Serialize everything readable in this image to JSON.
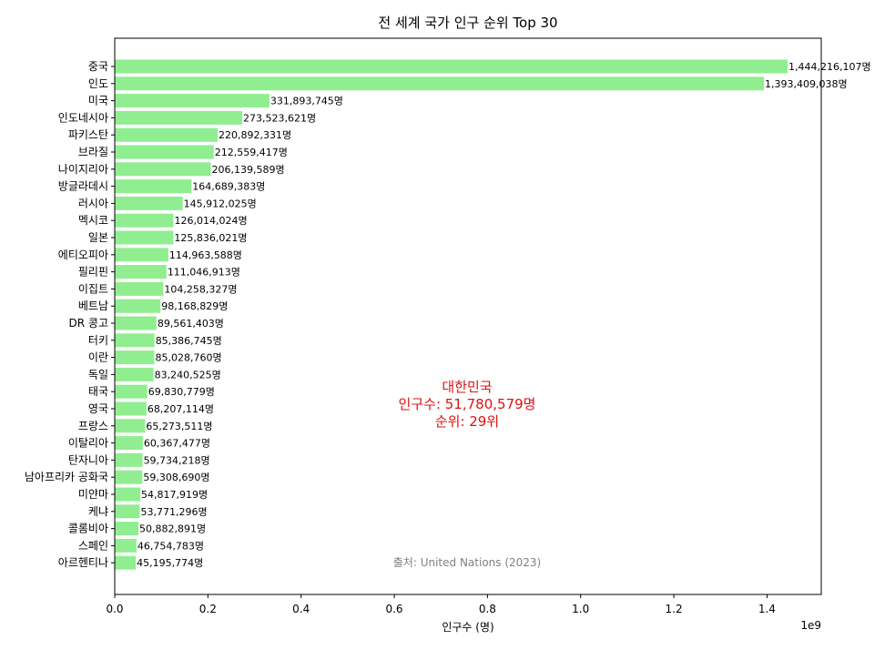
{
  "chart_data": {
    "type": "bar",
    "orientation": "horizontal",
    "title": "전 세계 국가 인구 순위 Top 30",
    "xlabel": "인구수 (명)",
    "ylabel": "",
    "xlim": [
      0,
      1516426912
    ],
    "x_ticks": [
      0,
      200000000,
      400000000,
      600000000,
      800000000,
      1000000000,
      1200000000,
      1400000000
    ],
    "x_tick_labels": [
      "0.0",
      "0.2",
      "0.4",
      "0.6",
      "0.8",
      "1.0",
      "1.2",
      "1.4"
    ],
    "x_scale_text": "1e9",
    "grid": false,
    "bar_color": "#90ee90",
    "value_suffix": "명",
    "categories": [
      "중국",
      "인도",
      "미국",
      "인도네시아",
      "파키스탄",
      "브라질",
      "나이지리아",
      "방글라데시",
      "러시아",
      "멕시코",
      "일본",
      "에티오피아",
      "필리핀",
      "이집트",
      "베트남",
      "DR 콩고",
      "터키",
      "이란",
      "독일",
      "태국",
      "영국",
      "프랑스",
      "이탈리아",
      "탄자니아",
      "남아프리카 공화국",
      "미얀마",
      "케냐",
      "콜롬비아",
      "스페인",
      "아르헨티나"
    ],
    "values": [
      1444216107,
      1393409038,
      331893745,
      273523621,
      220892331,
      212559417,
      206139589,
      164689383,
      145912025,
      126014024,
      125836021,
      114963588,
      111046913,
      104258327,
      98168829,
      89561403,
      85386745,
      85028760,
      83240525,
      69830779,
      68207114,
      65273511,
      60367477,
      59734218,
      59308690,
      54817919,
      53771296,
      50882891,
      46754783,
      45195774
    ],
    "value_labels": [
      "1,444,216,107명",
      "1,393,409,038명",
      "331,893,745명",
      "273,523,621명",
      "220,892,331명",
      "212,559,417명",
      "206,139,589명",
      "164,689,383명",
      "145,912,025명",
      "126,014,024명",
      "125,836,021명",
      "114,963,588명",
      "111,046,913명",
      "104,258,327명",
      "98,168,829명",
      "89,561,403명",
      "85,386,745명",
      "85,028,760명",
      "83,240,525명",
      "69,830,779명",
      "68,207,114명",
      "65,273,511명",
      "60,367,477명",
      "59,734,218명",
      "59,308,690명",
      "54,817,919명",
      "53,771,296명",
      "50,882,891명",
      "46,754,783명",
      "45,195,774명"
    ],
    "annotation": {
      "lines": [
        "대한민국",
        "인구수: 51,780,579명",
        "순위: 29위"
      ],
      "color": "#e01010"
    },
    "source_note": "출처: United Nations (2023)"
  }
}
